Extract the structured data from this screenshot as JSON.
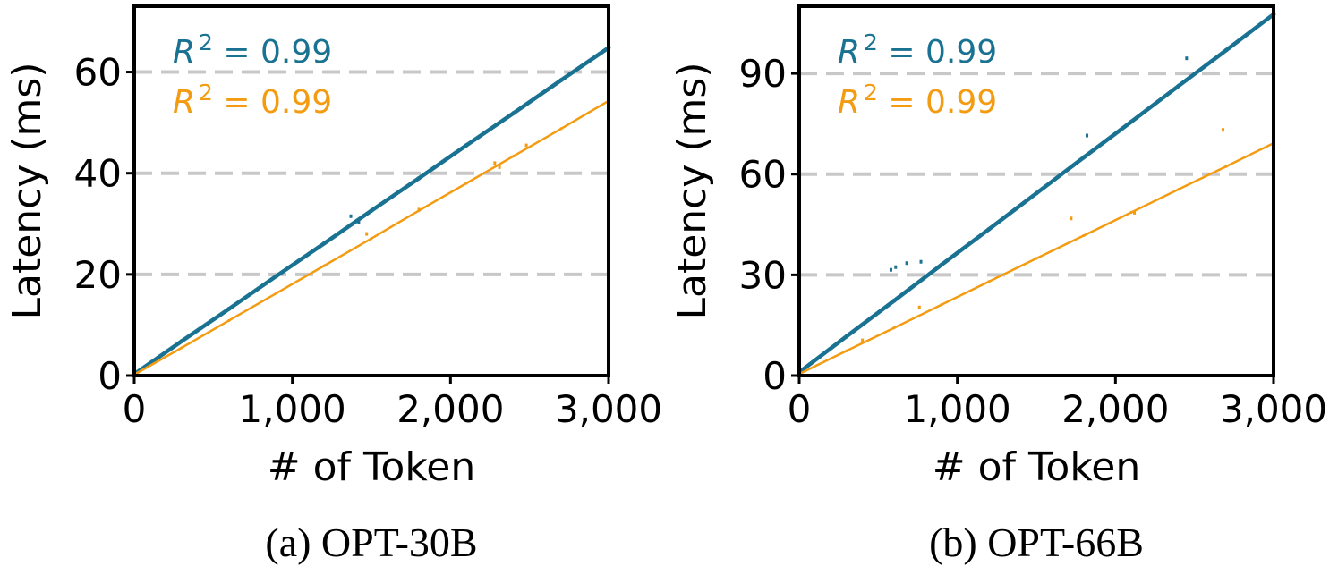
{
  "chart_data": [
    {
      "type": "scatter",
      "caption": "(a) OPT-30B",
      "xlabel": "# of Token",
      "ylabel": "Latency (ms)",
      "xlim": [
        0,
        3000
      ],
      "ylim": [
        0,
        73
      ],
      "xticks": [
        0,
        1000,
        2000,
        3000
      ],
      "xtick_labels": [
        "0",
        "1,000",
        "2,000",
        "3,000"
      ],
      "yticks": [
        0,
        20,
        40,
        60
      ],
      "ytick_labels": [
        "0",
        "20",
        "40",
        "60"
      ],
      "grid": "horizontal dashed",
      "series": [
        {
          "color": "#1a7292",
          "fit_label": "R^2 = 0.99",
          "values": [
            [
              0,
              0.3
            ],
            [
              300,
              6.8
            ],
            [
              600,
              13.2
            ],
            [
              900,
              19.7
            ],
            [
              1200,
              26.1
            ],
            [
              1500,
              32.6
            ],
            [
              1800,
              39.0
            ],
            [
              2100,
              45.5
            ],
            [
              2400,
              51.9
            ],
            [
              2700,
              58.4
            ],
            [
              3000,
              64.8
            ]
          ],
          "outliers": [
            [
              1370,
              31.5
            ],
            [
              1420,
              30.4
            ]
          ]
        },
        {
          "color": "#f39c12",
          "fit_label": "R^2 = 0.99",
          "values": [
            [
              0,
              0.2
            ],
            [
              300,
              5.5
            ],
            [
              600,
              10.9
            ],
            [
              900,
              16.3
            ],
            [
              1200,
              21.7
            ],
            [
              1500,
              27.1
            ],
            [
              1800,
              32.6
            ],
            [
              2100,
              38.0
            ],
            [
              2400,
              43.4
            ],
            [
              2700,
              48.8
            ],
            [
              3000,
              54.3
            ]
          ],
          "outliers": [
            [
              1470,
              28.0
            ],
            [
              2280,
              42.0
            ],
            [
              2310,
              41.2
            ],
            [
              2480,
              45.5
            ],
            [
              1800,
              32.8
            ]
          ]
        }
      ]
    },
    {
      "type": "scatter",
      "caption": "(b) OPT-66B",
      "xlabel": "# of Token",
      "ylabel": "Latency (ms)",
      "xlim": [
        0,
        3000
      ],
      "ylim": [
        0,
        110
      ],
      "xticks": [
        0,
        1000,
        2000,
        3000
      ],
      "xtick_labels": [
        "0",
        "1,000",
        "2,000",
        "3,000"
      ],
      "yticks": [
        0,
        30,
        60,
        90
      ],
      "ytick_labels": [
        "0",
        "30",
        "60",
        "90"
      ],
      "grid": "horizontal dashed",
      "series": [
        {
          "color": "#1a7292",
          "fit_label": "R^2 = 0.99",
          "values": [
            [
              0,
              1.0
            ],
            [
              300,
              11.7
            ],
            [
              600,
              22.3
            ],
            [
              900,
              33.0
            ],
            [
              1200,
              43.6
            ],
            [
              1500,
              54.3
            ],
            [
              1800,
              65.0
            ],
            [
              2100,
              75.6
            ],
            [
              2400,
              86.3
            ],
            [
              2700,
              96.9
            ],
            [
              3000,
              107.6
            ]
          ],
          "outliers": [
            [
              580,
              31.5
            ],
            [
              610,
              32.3
            ],
            [
              680,
              33.5
            ],
            [
              770,
              33.9
            ],
            [
              1820,
              71.5
            ],
            [
              2450,
              94.5
            ]
          ]
        },
        {
          "color": "#f39c12",
          "fit_label": "R^2 = 0.99",
          "values": [
            [
              0,
              0.5
            ],
            [
              300,
              7.4
            ],
            [
              600,
              14.2
            ],
            [
              900,
              21.1
            ],
            [
              1200,
              28.0
            ],
            [
              1500,
              34.9
            ],
            [
              1800,
              41.7
            ],
            [
              2100,
              48.6
            ],
            [
              2400,
              55.5
            ],
            [
              2700,
              62.3
            ],
            [
              3000,
              69.2
            ]
          ],
          "outliers": [
            [
              400,
              10.5
            ],
            [
              760,
              20.3
            ],
            [
              1720,
              46.8
            ],
            [
              2120,
              48.5
            ],
            [
              2680,
              73.2
            ]
          ]
        }
      ]
    }
  ]
}
